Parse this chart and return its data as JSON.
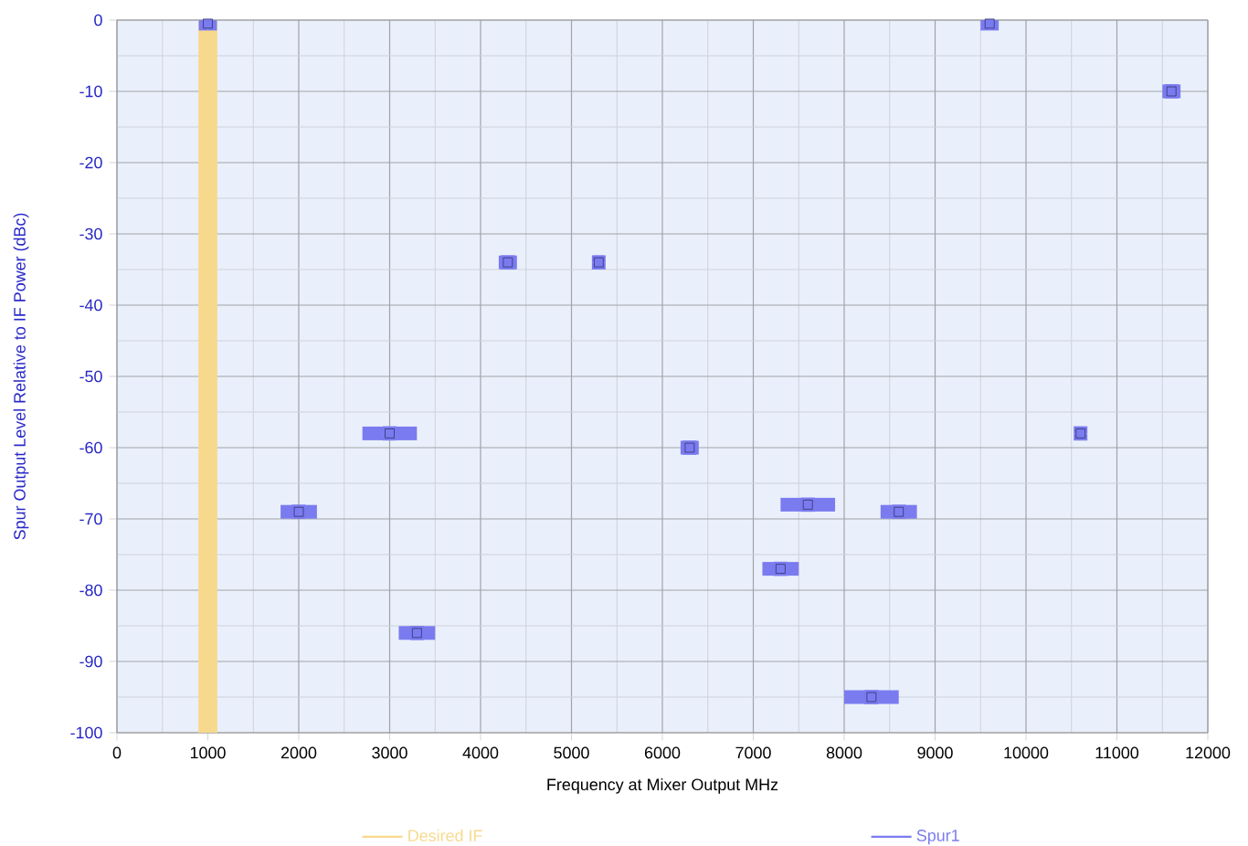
{
  "chart_data": {
    "type": "scatter",
    "xlabel": "Frequency at Mixer Output MHz",
    "ylabel": "Spur Output Level Relative to IF Power (dBc)",
    "xlim": [
      0,
      12000
    ],
    "xticks": [
      0,
      1000,
      2000,
      3000,
      4000,
      5000,
      6000,
      7000,
      8000,
      9000,
      10000,
      11000,
      12000
    ],
    "ylim": [
      -100,
      0
    ],
    "yticks": [
      -100,
      -90,
      -80,
      -70,
      -60,
      -50,
      -40,
      -30,
      -20,
      -10,
      0
    ],
    "grid": true,
    "legend": "bottom",
    "marker": "square",
    "series": [
      {
        "name": "Spur1",
        "color": "#7b7bf0",
        "x": [
          2000,
          3000,
          3300,
          4300,
          5300,
          1000,
          9600,
          11600,
          6300,
          10600,
          7600,
          8600,
          7300,
          8300
        ],
        "values": [
          -69,
          -58,
          -86,
          -34,
          -34,
          -0.5,
          -0.5,
          -10,
          -60,
          -58,
          -68,
          -69,
          -77,
          -95
        ],
        "xerrors": [
          [
            1800,
            2200
          ],
          [
            2700,
            3300
          ],
          [
            3100,
            3500
          ],
          [
            4200,
            4400
          ],
          [
            5250,
            5350
          ],
          [
            900,
            1100
          ],
          [
            9500,
            9700
          ],
          [
            11500,
            11700
          ],
          [
            6200,
            6400
          ],
          [
            10550,
            10650
          ],
          [
            7300,
            7900
          ],
          [
            8400,
            8800
          ],
          [
            7100,
            7500
          ],
          [
            8000,
            8600
          ]
        ],
        "errors": [
          [
            -70,
            -68
          ],
          [
            -59,
            -57
          ],
          [
            -87,
            -85
          ],
          [
            -35,
            -33
          ],
          [
            -35,
            -33
          ],
          [
            -1,
            0
          ],
          [
            -1,
            0
          ],
          [
            -11,
            -9
          ],
          [
            -61,
            -59
          ],
          [
            -59,
            -57
          ],
          [
            -69,
            -67
          ],
          [
            -70,
            -68
          ],
          [
            -78,
            -76
          ],
          [
            -96,
            -94
          ]
        ]
      }
    ],
    "bands": [
      {
        "axis": "x",
        "from": 900,
        "to": 1100,
        "label": "Desired IF",
        "color": "#f7d98e"
      }
    ]
  }
}
